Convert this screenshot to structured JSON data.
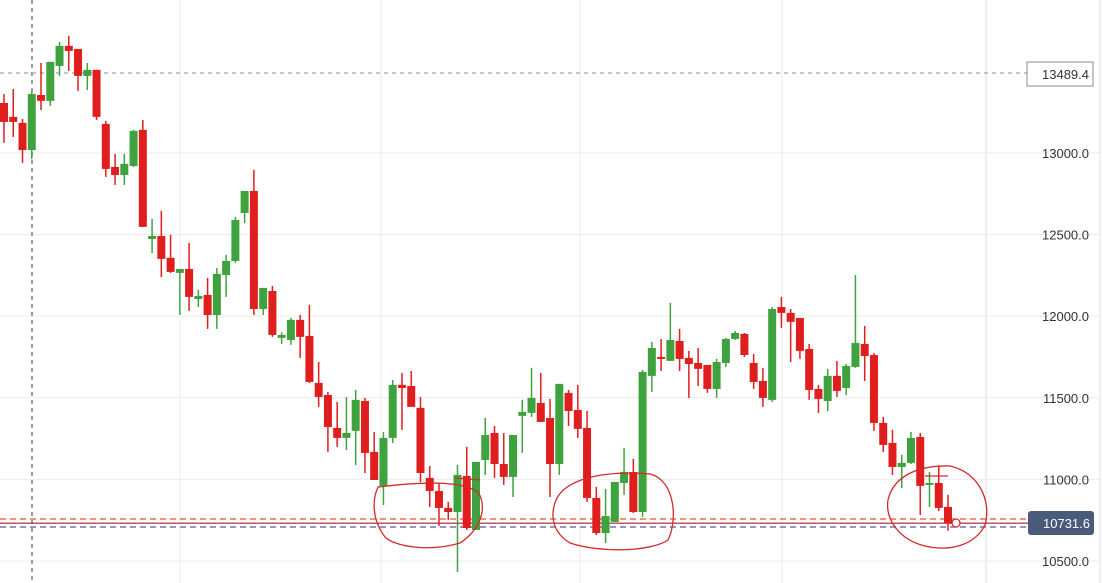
{
  "chart_data": {
    "type": "candlestick",
    "title": "",
    "xlabel": "",
    "ylabel": "",
    "ylim": [
      10365,
      13937
    ],
    "grid": true,
    "y_ticks": [
      "13000.0",
      "12500.0",
      "12000.0",
      "11500.0",
      "11000.0",
      "10500.0"
    ],
    "y_tick_values": [
      13000,
      12500,
      12000,
      11500,
      11000,
      10500
    ],
    "up_color": "#3ea33e",
    "down_color": "#e01e1e",
    "last_price": {
      "value": 10731.6,
      "label": "10731.6",
      "color": "#4a5a7a"
    },
    "marker_price": {
      "value": 13489.4,
      "label": "13489.4"
    },
    "reference_lines": [
      {
        "value": 10757,
        "color": "#e8704a",
        "style": "dashed"
      },
      {
        "value": 10708,
        "color": "#7f6fa8",
        "style": "dashed"
      }
    ],
    "candles_ohlc": [
      [
        13306,
        13361,
        13061,
        13190
      ],
      [
        13221,
        13392,
        13098,
        13190
      ],
      [
        13184,
        13208,
        12939,
        13018
      ],
      [
        13018,
        13374,
        12963,
        13361
      ],
      [
        13355,
        13551,
        13263,
        13319
      ],
      [
        13319,
        13558,
        13288,
        13558
      ],
      [
        13533,
        13680,
        13472,
        13656
      ],
      [
        13656,
        13717,
        13502,
        13625
      ],
      [
        13637,
        13637,
        13380,
        13472
      ],
      [
        13472,
        13551,
        13386,
        13509
      ],
      [
        13509,
        13509,
        13202,
        13221
      ],
      [
        13178,
        13196,
        12853,
        12902
      ],
      [
        12914,
        12994,
        12804,
        12865
      ],
      [
        12865,
        12994,
        12804,
        12933
      ],
      [
        12920,
        13141,
        12914,
        13135
      ],
      [
        13141,
        13202,
        12547,
        12547
      ],
      [
        12473,
        12596,
        12387,
        12491
      ],
      [
        12491,
        12645,
        12240,
        12351
      ],
      [
        12357,
        12498,
        12265,
        12271
      ],
      [
        12265,
        12289,
        12007,
        12289
      ],
      [
        12289,
        12449,
        12032,
        12118
      ],
      [
        12105,
        12161,
        12056,
        12124
      ],
      [
        12130,
        12234,
        11922,
        12007
      ],
      [
        12007,
        12295,
        11922,
        12259
      ],
      [
        12252,
        12375,
        12118,
        12338
      ],
      [
        12338,
        12608,
        12326,
        12589
      ],
      [
        12632,
        12767,
        12571,
        12767
      ],
      [
        12767,
        12896,
        12007,
        12044
      ],
      [
        12044,
        12173,
        12007,
        12173
      ],
      [
        12154,
        12185,
        11873,
        11885
      ],
      [
        11867,
        11900,
        11830,
        11885
      ],
      [
        11854,
        11989,
        11824,
        11977
      ],
      [
        11977,
        12007,
        11744,
        11873
      ],
      [
        11879,
        12069,
        11591,
        11597
      ],
      [
        11591,
        11719,
        11444,
        11505
      ],
      [
        11517,
        11536,
        11168,
        11321
      ],
      [
        11315,
        11474,
        11199,
        11254
      ],
      [
        11254,
        11505,
        11180,
        11284
      ],
      [
        11297,
        11548,
        11088,
        11487
      ],
      [
        11480,
        11499,
        11039,
        11162
      ],
      [
        11168,
        11291,
        10996,
        10996
      ],
      [
        10960,
        11291,
        10843,
        11254
      ],
      [
        11254,
        11609,
        11223,
        11579
      ],
      [
        11579,
        11652,
        11303,
        11560
      ],
      [
        11572,
        11664,
        11444,
        11444
      ],
      [
        11438,
        11505,
        10984,
        11039
      ],
      [
        11009,
        11082,
        10831,
        10929
      ],
      [
        10929,
        10978,
        10715,
        10825
      ],
      [
        10825,
        10862,
        10751,
        10800
      ],
      [
        10800,
        11088,
        10433,
        11027
      ],
      [
        11021,
        11199,
        10690,
        10702
      ],
      [
        10690,
        11107,
        10690,
        11107
      ],
      [
        11119,
        11376,
        11027,
        11272
      ],
      [
        11284,
        11327,
        11009,
        11094
      ],
      [
        11094,
        11284,
        10966,
        11015
      ],
      [
        11015,
        11272,
        10892,
        11272
      ],
      [
        11389,
        11487,
        11162,
        11413
      ],
      [
        11407,
        11683,
        11383,
        11499
      ],
      [
        11468,
        11652,
        11352,
        11352
      ],
      [
        11376,
        11493,
        10892,
        11094
      ],
      [
        11094,
        11585,
        11027,
        11585
      ],
      [
        11530,
        11548,
        11327,
        11419
      ],
      [
        11425,
        11579,
        11254,
        11309
      ],
      [
        11315,
        11419,
        10862,
        10886
      ],
      [
        10886,
        10954,
        10659,
        10671
      ],
      [
        10671,
        10941,
        10610,
        10775
      ],
      [
        10739,
        10984,
        10739,
        10984
      ],
      [
        10978,
        11193,
        10905,
        11045
      ],
      [
        11045,
        11125,
        10794,
        10800
      ],
      [
        10800,
        11670,
        10770,
        11658
      ],
      [
        11634,
        11842,
        11536,
        11805
      ],
      [
        11750,
        11860,
        11664,
        11738
      ],
      [
        11726,
        12081,
        11726,
        11854
      ],
      [
        11848,
        11922,
        11664,
        11738
      ],
      [
        11744,
        11787,
        11499,
        11707
      ],
      [
        11713,
        11805,
        11572,
        11677
      ],
      [
        11701,
        11701,
        11530,
        11554
      ],
      [
        11554,
        11738,
        11499,
        11719
      ],
      [
        11713,
        11867,
        11689,
        11860
      ],
      [
        11860,
        11909,
        11854,
        11897
      ],
      [
        11891,
        11897,
        11750,
        11762
      ],
      [
        11713,
        11768,
        11554,
        11597
      ],
      [
        11603,
        11683,
        11444,
        11499
      ],
      [
        11487,
        12056,
        11474,
        12044
      ],
      [
        12056,
        12118,
        11928,
        12020
      ],
      [
        12020,
        12044,
        11719,
        11965
      ],
      [
        11989,
        11989,
        11738,
        11787
      ],
      [
        11799,
        11830,
        11487,
        11548
      ],
      [
        11554,
        11579,
        11407,
        11493
      ],
      [
        11480,
        11677,
        11419,
        11634
      ],
      [
        11634,
        11726,
        11505,
        11542
      ],
      [
        11560,
        11707,
        11517,
        11695
      ],
      [
        11689,
        12252,
        11683,
        11836
      ],
      [
        11830,
        11940,
        11603,
        11756
      ],
      [
        11762,
        11774,
        11297,
        11346
      ],
      [
        11346,
        11383,
        11168,
        11211
      ],
      [
        11223,
        11303,
        11027,
        11076
      ],
      [
        11076,
        11150,
        10947,
        11101
      ],
      [
        11101,
        11291,
        11094,
        11254
      ],
      [
        11260,
        11284,
        10782,
        10960
      ],
      [
        10966,
        11045,
        10831,
        10978
      ],
      [
        10978,
        11082,
        10806,
        10825
      ],
      [
        10831,
        10905,
        10685,
        10731.6
      ]
    ]
  }
}
